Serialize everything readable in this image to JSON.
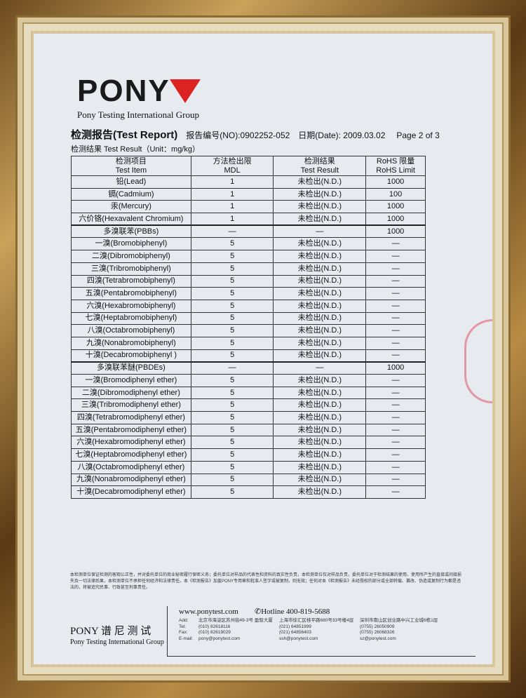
{
  "header": {
    "logo": "PONY",
    "group": "Pony Testing International Group",
    "title": "检测报告(Test Report)",
    "report_no": "报告编号(NO):0902252-052",
    "date": "日期(Date): 2009.03.02",
    "page": "Page 2 of 3",
    "unit": "检测结果 Test Result（Unit：mg/kg）"
  },
  "table": {
    "headers": [
      [
        "检测项目",
        "Test Item"
      ],
      [
        "方法检出限",
        "MDL"
      ],
      [
        "检测结果",
        "Test Result"
      ],
      [
        "RoHS 限量",
        "RoHS Limit"
      ]
    ],
    "rows": [
      [
        "铅(Lead)",
        "1",
        "未检出(N.D.)",
        "1000"
      ],
      [
        "镉(Cadmium)",
        "1",
        "未检出(N.D.)",
        "100"
      ],
      [
        "汞(Mercury)",
        "1",
        "未检出(N.D.)",
        "1000"
      ],
      [
        "六价铬(Hexavalent Chromium)",
        "1",
        "未检出(N.D.)",
        "1000"
      ],
      [
        "多溴联苯(PBBs)",
        "—",
        "—",
        "1000"
      ],
      [
        "一溴(Bromobiphenyl)",
        "5",
        "未检出(N.D.)",
        "—"
      ],
      [
        "二溴(Dibromobiphenyl)",
        "5",
        "未检出(N.D.)",
        "—"
      ],
      [
        "三溴(Tribromobiphenyl)",
        "5",
        "未检出(N.D.)",
        "—"
      ],
      [
        "四溴(Tetrabromobiphenyl)",
        "5",
        "未检出(N.D.)",
        "—"
      ],
      [
        "五溴(Pentabromobiphenyl)",
        "5",
        "未检出(N.D.)",
        "—"
      ],
      [
        "六溴(Hexabromobiphenyl)",
        "5",
        "未检出(N.D.)",
        "—"
      ],
      [
        "七溴(Heptabromobiphenyl)",
        "5",
        "未检出(N.D.)",
        "—"
      ],
      [
        "八溴(Octabromobiphenyl)",
        "5",
        "未检出(N.D.)",
        "—"
      ],
      [
        "九溴(Nonabromobiphenyl)",
        "5",
        "未检出(N.D.)",
        "—"
      ],
      [
        "十溴(Decabromobiphenyl )",
        "5",
        "未检出(N.D.)",
        "—"
      ],
      [
        "多溴联苯醚(PBDEs)",
        "—",
        "—",
        "1000"
      ],
      [
        "一溴(Bromodiphenyl ether)",
        "5",
        "未检出(N.D.)",
        "—"
      ],
      [
        "二溴(Dibromodiphenyl ether)",
        "5",
        "未检出(N.D.)",
        "—"
      ],
      [
        "三溴(Tribromodiphenyl ether)",
        "5",
        "未检出(N.D.)",
        "—"
      ],
      [
        "四溴(Tetrabromodiphenyl ether)",
        "5",
        "未检出(N.D.)",
        "—"
      ],
      [
        "五溴(Pentabromodiphenyl ether)",
        "5",
        "未检出(N.D.)",
        "—"
      ],
      [
        "六溴(Hexabromodiphenyl ether)",
        "5",
        "未检出(N.D.)",
        "—"
      ],
      [
        "七溴(Heptabromodiphenyl ether)",
        "5",
        "未检出(N.D.)",
        "—"
      ],
      [
        "八溴(Octabromodiphenyl ether)",
        "5",
        "未检出(N.D.)",
        "—"
      ],
      [
        "九溴(Nonabromodiphenyl ether)",
        "5",
        "未检出(N.D.)",
        "—"
      ],
      [
        "十溴(Decabromodiphenyl ether)",
        "5",
        "未检出(N.D.)",
        "—"
      ]
    ]
  },
  "footer": {
    "disclaimer": "本检测单位保证检测的客观公正性，并对委托单位的商业秘密履行保密义务；委托单位对样品的代表性和资料的真实性负责，本检测单位仅对样品负责，委托单位对于检测结果的使用、使用所产生的直接或间接损失及一切法律后果，本检测单位不承担任何经济和法律责任。本《检测报告》加盖PONY专用章和批准人签字或被复制，则无效；任何对本《检测报告》未经授权的部分或全部转载、篡改、伪造或复制行为都是违法的，将被追究民事、行政甚至刑事责任。",
    "brand": "PONY 谱 尼 测 试",
    "brand_en": "Pony Testing International Group",
    "website": "www.ponytest.com",
    "hotline": "✆Hotline 400-819-5688",
    "contact": [
      [
        "Add:",
        "北京市海淀区苏州街49-3号 盈智大厦",
        "上海市徐汇区桂平路680号33号楼4层",
        "深圳市南山区创业路中兴工业城6栋1层"
      ],
      [
        "Tel:",
        "(010) 82618116",
        "(021) 64851999",
        "(0755) 26050909"
      ],
      [
        "Fax:",
        "(010) 82619029",
        "(021) 64856403",
        "(0755) 26068326"
      ],
      [
        "E-mail:",
        "pony@ponytest.com",
        "ssh@ponytest.com",
        "sz@ponytest.com"
      ]
    ]
  }
}
